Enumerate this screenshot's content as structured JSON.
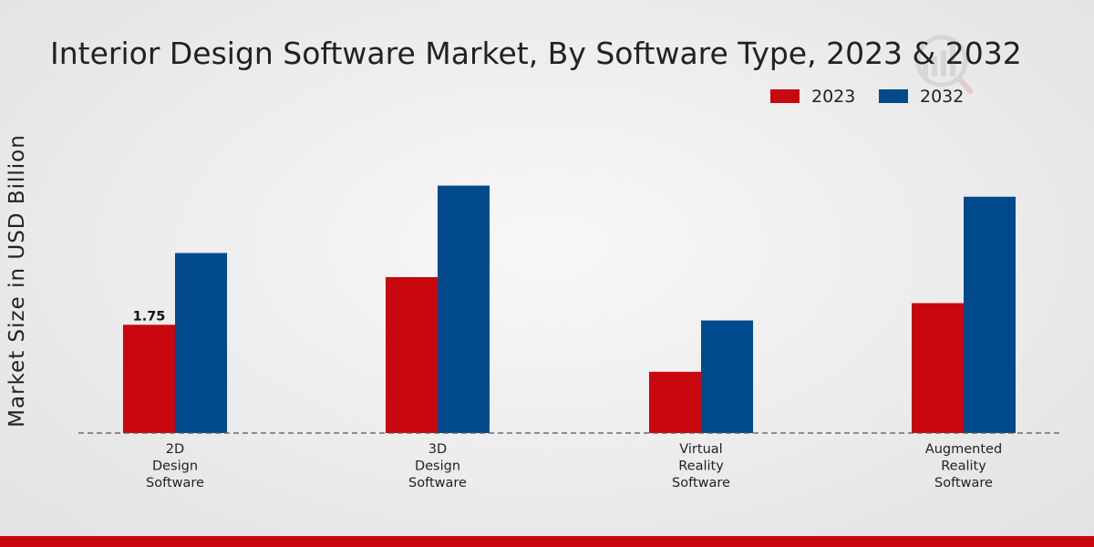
{
  "chart_data": {
    "type": "bar",
    "title": "Interior Design Software Market, By Software Type, 2023 & 2032",
    "xlabel": "",
    "ylabel": "Market Size in USD Billion",
    "categories": [
      [
        "2D",
        "Design",
        "Software"
      ],
      [
        "3D",
        "Design",
        "Software"
      ],
      [
        "Virtual",
        "Reality",
        "Software"
      ],
      [
        "Augmented",
        "Reality",
        "Software"
      ]
    ],
    "series": [
      {
        "name": "2023",
        "color": "#c8070e",
        "values": [
          1.75,
          2.52,
          0.99,
          2.1
        ]
      },
      {
        "name": "2032",
        "color": "#004a8c",
        "values": [
          2.91,
          4.0,
          1.82,
          3.82
        ]
      }
    ],
    "data_labels": [
      {
        "series": 0,
        "category": 0,
        "text": "1.75"
      }
    ],
    "ylim": [
      0,
      5.6
    ],
    "grid": false,
    "legend": "top-right"
  },
  "colors": {
    "accent_bar": "#c8070e",
    "text": "#222222"
  },
  "watermark_icon": "chart-logo-icon"
}
